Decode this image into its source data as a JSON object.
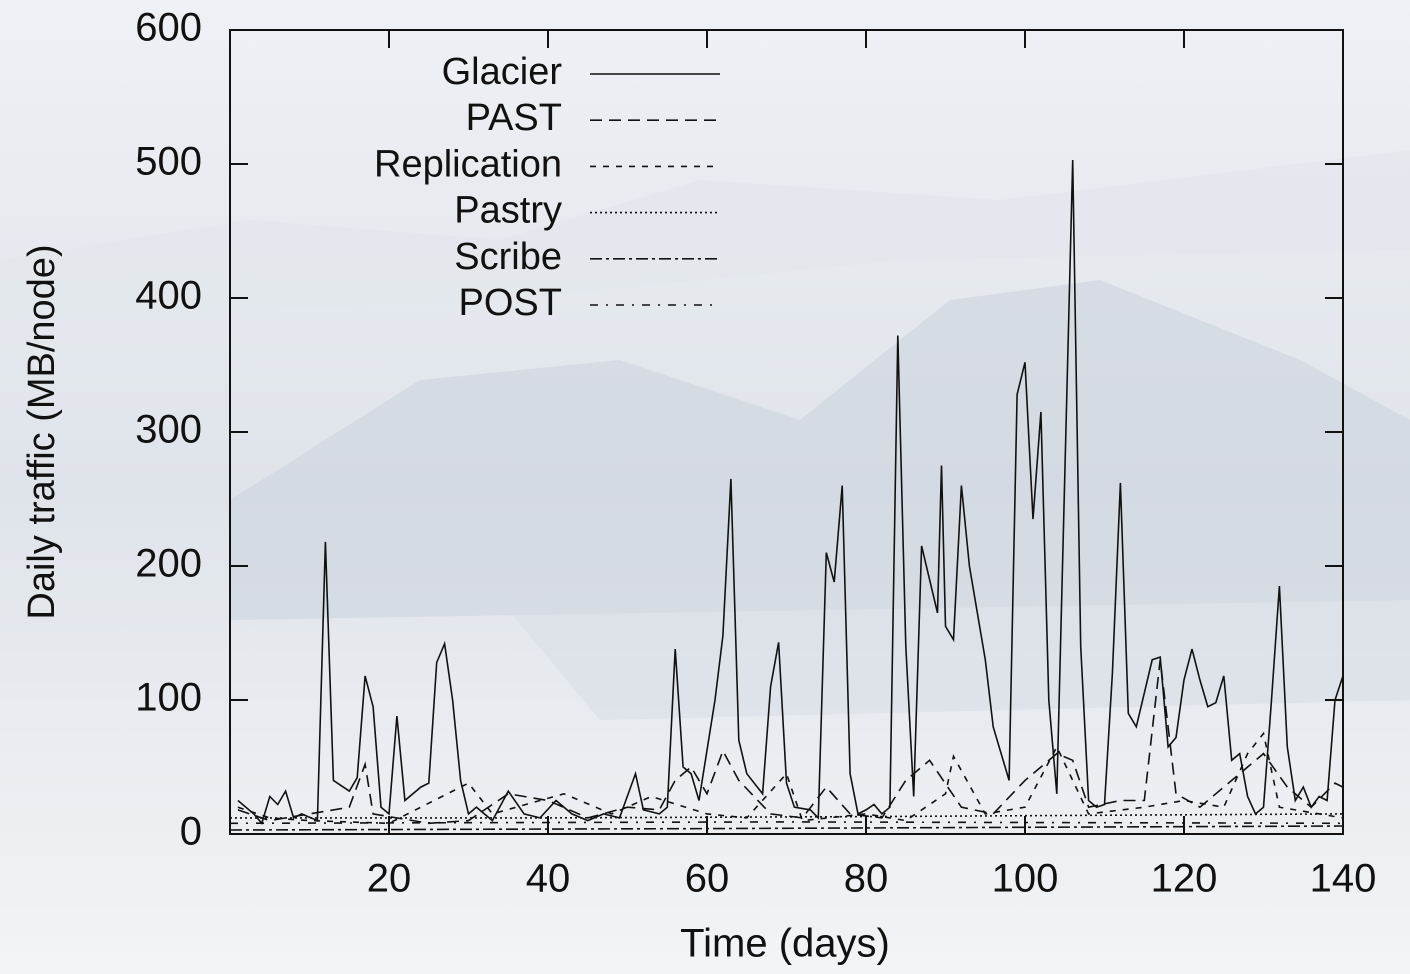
{
  "chart_data": {
    "type": "line",
    "x_label": "Time (days)",
    "y_label": "Daily traffic (MB/node)",
    "xlim": [
      0,
      140
    ],
    "xticks": [
      20,
      40,
      60,
      80,
      100,
      120,
      140
    ],
    "ylim": [
      0,
      600
    ],
    "yticks": [
      0,
      100,
      200,
      300,
      400,
      500,
      600
    ],
    "legend": "top-left",
    "series": [
      {
        "name": "Glacier",
        "color": "#111111",
        "x": [
          1,
          3,
          4,
          5,
          6,
          7,
          8,
          9,
          11,
          12,
          13,
          15,
          16,
          17,
          18,
          19,
          20,
          21,
          22,
          24,
          25,
          26,
          27,
          28,
          29,
          30,
          31,
          33,
          35,
          37,
          39,
          41,
          43,
          45,
          47,
          49,
          51,
          52,
          54,
          55,
          56,
          57,
          58,
          59,
          61,
          62,
          63,
          64,
          65,
          67,
          68,
          69,
          70,
          71,
          73,
          74,
          75,
          76,
          77,
          78,
          79,
          80,
          81,
          82,
          83,
          84,
          85,
          86,
          87,
          89,
          89.5,
          90,
          91,
          92,
          93,
          95,
          96,
          98,
          99,
          100,
          101,
          102,
          103,
          104,
          106,
          107,
          108,
          109,
          110,
          111,
          112,
          113,
          114,
          116,
          117,
          118,
          119,
          120,
          121,
          122,
          123,
          124,
          125,
          126,
          127,
          128,
          129,
          130,
          131,
          132,
          133,
          134,
          135,
          136,
          137,
          138,
          139,
          140
        ],
        "values": [
          25,
          15,
          8,
          28,
          22,
          32,
          12,
          15,
          10,
          218,
          40,
          32,
          42,
          118,
          95,
          20,
          15,
          88,
          25,
          35,
          38,
          128,
          142,
          100,
          40,
          15,
          20,
          10,
          32,
          15,
          12,
          25,
          15,
          10,
          15,
          12,
          45,
          18,
          15,
          20,
          138,
          50,
          45,
          25,
          100,
          148,
          265,
          70,
          45,
          30,
          110,
          143,
          38,
          20,
          18,
          12,
          210,
          188,
          260,
          45,
          15,
          18,
          22,
          15,
          20,
          372,
          140,
          28,
          215,
          165,
          275,
          155,
          145,
          260,
          200,
          130,
          80,
          40,
          328,
          352,
          235,
          315,
          100,
          30,
          503,
          140,
          25,
          20,
          22,
          120,
          262,
          90,
          80,
          130,
          132,
          65,
          72,
          115,
          138,
          115,
          95,
          98,
          118,
          55,
          60,
          28,
          15,
          20,
          100,
          185,
          65,
          25,
          35,
          20,
          28,
          25,
          100,
          118
        ]
      },
      {
        "name": "PAST",
        "color": "#111111",
        "dash": "12,7",
        "x": [
          1,
          5,
          10,
          15,
          17,
          18,
          25,
          30,
          35,
          40,
          45,
          50,
          54,
          56,
          58,
          60,
          62,
          64,
          68,
          72,
          75,
          78,
          82,
          85,
          88,
          92,
          96,
          100,
          104,
          106,
          108,
          112,
          115,
          117,
          119,
          122,
          126,
          130,
          133,
          136,
          139,
          140
        ],
        "values": [
          18,
          10,
          15,
          20,
          52,
          15,
          8,
          10,
          30,
          25,
          12,
          20,
          18,
          40,
          50,
          30,
          62,
          40,
          15,
          12,
          35,
          15,
          12,
          40,
          55,
          20,
          15,
          40,
          60,
          55,
          20,
          25,
          25,
          130,
          30,
          20,
          40,
          60,
          35,
          20,
          38,
          35
        ]
      },
      {
        "name": "Replication",
        "color": "#111111",
        "dash": "6,7",
        "x": [
          1,
          5,
          10,
          20,
          30,
          33,
          42,
          48,
          53,
          60,
          65,
          70,
          72,
          80,
          85,
          90,
          91,
          95,
          100,
          104,
          108,
          115,
          120,
          125,
          128,
          130,
          132,
          140
        ],
        "values": [
          20,
          12,
          10,
          8,
          38,
          15,
          30,
          15,
          28,
          15,
          12,
          45,
          10,
          15,
          10,
          30,
          58,
          15,
          20,
          65,
          15,
          20,
          25,
          20,
          60,
          75,
          20,
          12
        ]
      },
      {
        "name": "Pastry",
        "color": "#111111",
        "dash": "2,3",
        "x": [
          0,
          40,
          80,
          140
        ],
        "values": [
          12,
          12,
          13,
          15
        ]
      },
      {
        "name": "Scribe",
        "color": "#111111",
        "dash": "12,4,3,4",
        "x": [
          0,
          60,
          100,
          140
        ],
        "values": [
          3,
          4,
          5,
          6
        ]
      },
      {
        "name": "POST",
        "color": "#111111",
        "dash": "8,8,2,8",
        "x": [
          0,
          70,
          140
        ],
        "values": [
          8,
          9,
          8
        ]
      }
    ]
  }
}
